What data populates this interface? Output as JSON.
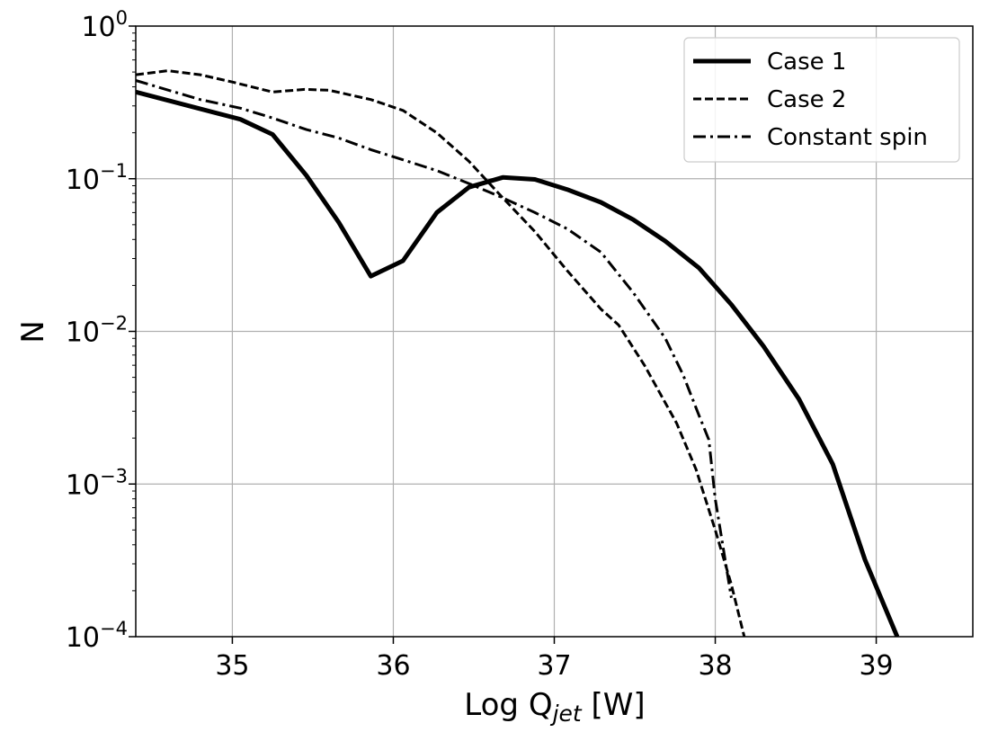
{
  "chart_data": {
    "type": "line",
    "xlabel": {
      "main": "Log Q",
      "sub": "jet",
      "unit": " [W]"
    },
    "ylabel": "N",
    "xlim": [
      34.4,
      39.6
    ],
    "ylim": [
      0.0001,
      1
    ],
    "yscale": "log",
    "grid": true,
    "legend_position": "top-right",
    "xticks": [
      35,
      36,
      37,
      38,
      39
    ],
    "yticks": [
      {
        "value": 0.0001,
        "base": "10",
        "exp": "−4"
      },
      {
        "value": 0.001,
        "base": "10",
        "exp": "−3"
      },
      {
        "value": 0.01,
        "base": "10",
        "exp": "−2"
      },
      {
        "value": 0.1,
        "base": "10",
        "exp": "−1"
      },
      {
        "value": 1,
        "base": "10",
        "exp": "0"
      }
    ],
    "series": [
      {
        "name": "Case 1",
        "style": "solid",
        "x": [
          34.4,
          35.05,
          35.25,
          35.46,
          35.66,
          35.86,
          36.06,
          36.27,
          36.47,
          36.68,
          36.88,
          37.08,
          37.29,
          37.49,
          37.69,
          37.9,
          38.1,
          38.3,
          38.52,
          38.73,
          38.93,
          39.13
        ],
        "y": [
          0.37,
          0.245,
          0.195,
          0.105,
          0.052,
          0.023,
          0.029,
          0.06,
          0.088,
          0.102,
          0.099,
          0.085,
          0.07,
          0.054,
          0.039,
          0.026,
          0.015,
          0.008,
          0.0036,
          0.00135,
          0.00032,
          0.0001
        ]
      },
      {
        "name": "Case 2",
        "style": "dashed",
        "x": [
          34.4,
          34.6,
          34.8,
          35.0,
          35.25,
          35.45,
          35.6,
          35.86,
          36.06,
          36.27,
          36.47,
          36.68,
          36.88,
          37.08,
          37.29,
          37.4,
          37.56,
          37.76,
          37.88,
          38.0,
          38.1,
          38.18
        ],
        "y": [
          0.48,
          0.51,
          0.48,
          0.43,
          0.37,
          0.385,
          0.38,
          0.33,
          0.28,
          0.2,
          0.13,
          0.075,
          0.045,
          0.025,
          0.014,
          0.011,
          0.006,
          0.0025,
          0.00125,
          0.0005,
          0.00022,
          0.0001
        ]
      },
      {
        "name": "Constant spin",
        "style": "dashdot",
        "x": [
          34.4,
          34.8,
          35.05,
          35.25,
          35.46,
          35.66,
          35.86,
          36.06,
          36.27,
          36.47,
          36.68,
          36.88,
          37.08,
          37.29,
          37.49,
          37.69,
          37.8,
          37.9,
          37.96,
          38.0,
          38.1
        ],
        "y": [
          0.44,
          0.33,
          0.29,
          0.25,
          0.21,
          0.185,
          0.155,
          0.133,
          0.113,
          0.093,
          0.075,
          0.06,
          0.047,
          0.033,
          0.018,
          0.009,
          0.0052,
          0.0028,
          0.00195,
          0.0008,
          0.00018
        ]
      }
    ]
  }
}
